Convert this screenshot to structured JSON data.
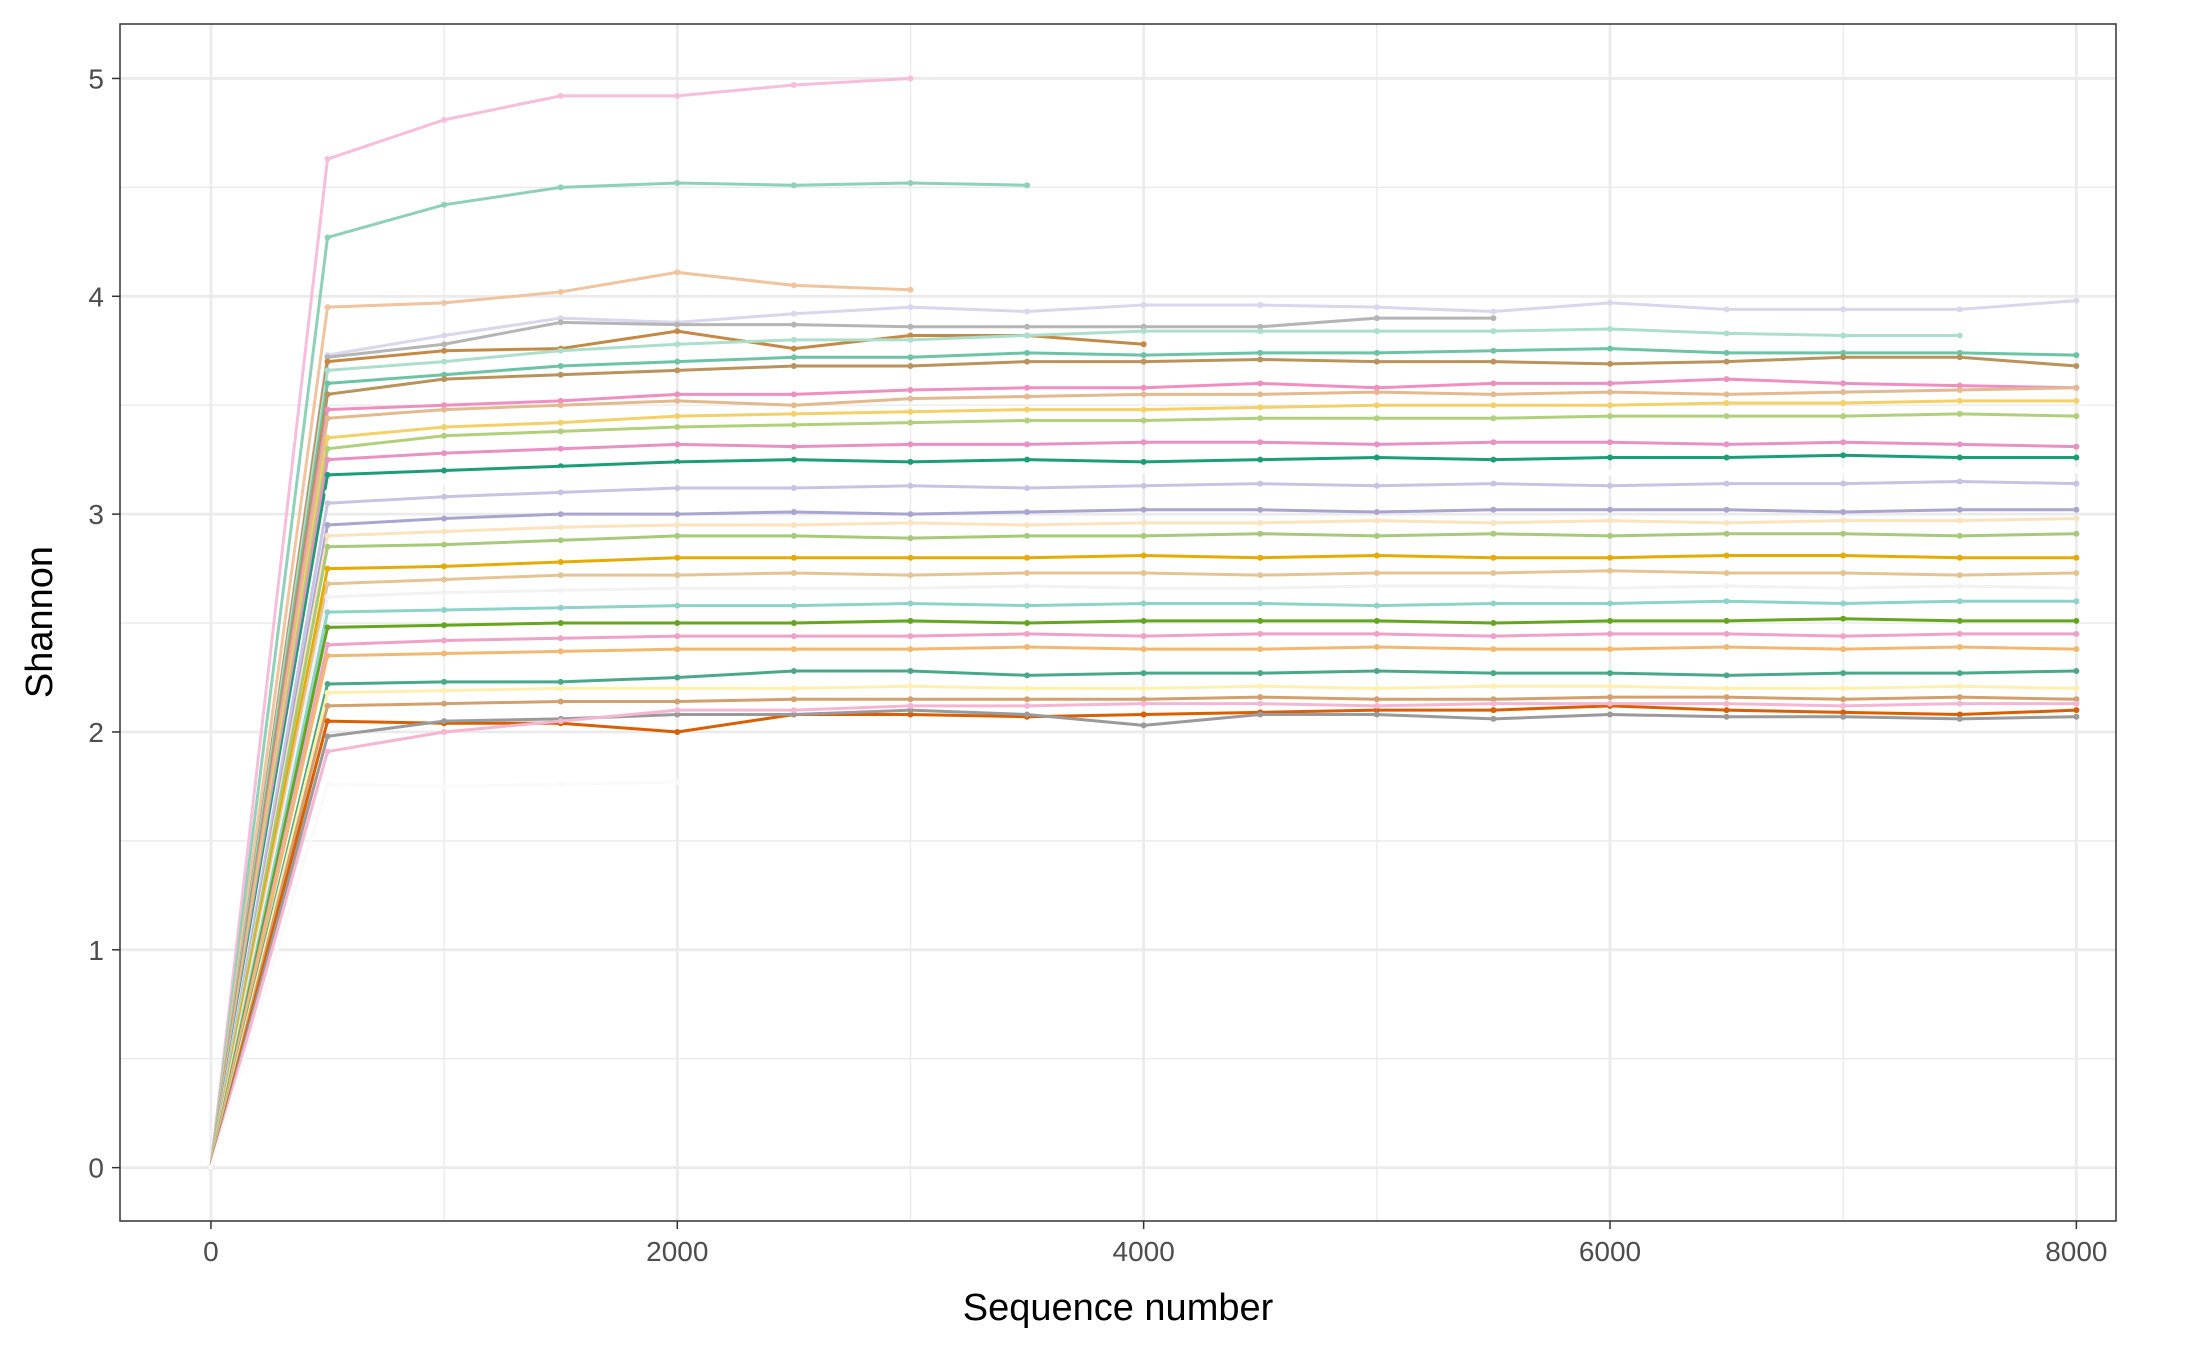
{
  "chart_data": {
    "type": "line",
    "x_label": "Sequence number",
    "y_label": "Shannon",
    "x": [
      0,
      500,
      1000,
      1500,
      2000,
      2500,
      3000,
      3500,
      4000,
      4500,
      5000,
      5500,
      6000,
      6500,
      7000,
      7500,
      8000
    ],
    "xlim": [
      -390,
      8170
    ],
    "xticks": [
      0,
      2000,
      4000,
      6000,
      8000
    ],
    "ylim": [
      -0.245,
      5.25
    ],
    "yticks": [
      0,
      1,
      2,
      3,
      4,
      5
    ],
    "grid": true,
    "series": [
      {
        "color": "#f7bedb",
        "values": [
          0,
          4.63,
          4.81,
          4.92,
          4.92,
          4.97,
          5.0,
          null,
          null,
          null,
          null,
          null,
          null,
          null,
          null,
          null,
          null
        ]
      },
      {
        "color": "#8fd1b8",
        "values": [
          0,
          4.27,
          4.42,
          4.5,
          4.52,
          4.51,
          4.52,
          4.51,
          null,
          null,
          null,
          null,
          null,
          null,
          null,
          null,
          null
        ]
      },
      {
        "color": "#efc49f",
        "values": [
          0,
          3.95,
          3.97,
          4.02,
          4.11,
          4.05,
          4.03,
          null,
          null,
          null,
          null,
          null,
          null,
          null,
          null,
          null,
          null
        ]
      },
      {
        "color": "#dad6ee",
        "values": [
          0,
          3.73,
          3.82,
          3.9,
          3.88,
          3.92,
          3.95,
          3.93,
          3.96,
          3.96,
          3.95,
          3.93,
          3.97,
          3.94,
          3.94,
          3.94,
          3.98
        ]
      },
      {
        "color": "#b5b5b5",
        "values": [
          0,
          3.72,
          3.78,
          3.88,
          3.87,
          3.87,
          3.86,
          3.86,
          3.86,
          3.86,
          3.9,
          3.9,
          null,
          null,
          null,
          null,
          null
        ]
      },
      {
        "color": "#c48a45",
        "values": [
          0,
          3.7,
          3.75,
          3.76,
          3.84,
          3.76,
          3.82,
          3.82,
          3.78,
          null,
          null,
          null,
          null,
          null,
          null,
          null,
          null
        ]
      },
      {
        "color": "#acdfcb",
        "values": [
          0,
          3.66,
          3.7,
          3.75,
          3.78,
          3.8,
          3.8,
          3.82,
          3.84,
          3.84,
          3.84,
          3.84,
          3.85,
          3.83,
          3.82,
          3.82,
          null
        ]
      },
      {
        "color": "#6cc3a6",
        "values": [
          0,
          3.6,
          3.64,
          3.68,
          3.7,
          3.72,
          3.72,
          3.74,
          3.73,
          3.74,
          3.74,
          3.75,
          3.76,
          3.74,
          3.74,
          3.74,
          3.73
        ]
      },
      {
        "color": "#b9935b",
        "values": [
          0,
          3.55,
          3.62,
          3.64,
          3.66,
          3.68,
          3.68,
          3.7,
          3.7,
          3.71,
          3.7,
          3.7,
          3.69,
          3.7,
          3.72,
          3.72,
          3.68
        ]
      },
      {
        "color": "#ef8fc1",
        "values": [
          0,
          3.48,
          3.5,
          3.52,
          3.55,
          3.55,
          3.57,
          3.58,
          3.58,
          3.6,
          3.58,
          3.6,
          3.6,
          3.62,
          3.6,
          3.59,
          3.58
        ]
      },
      {
        "color": "#e3b98f",
        "values": [
          0,
          3.44,
          3.48,
          3.5,
          3.52,
          3.5,
          3.53,
          3.54,
          3.55,
          3.55,
          3.56,
          3.55,
          3.56,
          3.55,
          3.56,
          3.57,
          3.58
        ]
      },
      {
        "color": "#f3d166",
        "values": [
          0,
          3.35,
          3.4,
          3.42,
          3.45,
          3.46,
          3.47,
          3.48,
          3.48,
          3.49,
          3.5,
          3.5,
          3.5,
          3.51,
          3.51,
          3.52,
          3.52
        ]
      },
      {
        "color": "#b1d07c",
        "values": [
          0,
          3.3,
          3.36,
          3.38,
          3.4,
          3.41,
          3.42,
          3.43,
          3.43,
          3.44,
          3.44,
          3.44,
          3.45,
          3.45,
          3.45,
          3.46,
          3.45
        ]
      },
      {
        "color": "#e991c4",
        "values": [
          0,
          3.25,
          3.28,
          3.3,
          3.32,
          3.31,
          3.32,
          3.32,
          3.33,
          3.33,
          3.32,
          3.33,
          3.33,
          3.32,
          3.33,
          3.32,
          3.31
        ]
      },
      {
        "color": "#1b9e77",
        "values": [
          0,
          3.18,
          3.2,
          3.22,
          3.24,
          3.25,
          3.24,
          3.25,
          3.24,
          3.25,
          3.26,
          3.25,
          3.26,
          3.26,
          3.27,
          3.26,
          3.26
        ]
      },
      {
        "color": "#ffffff",
        "values": [
          0,
          3.1,
          3.15,
          3.2,
          3.22,
          3.18,
          3.2,
          3.19,
          3.2,
          3.21,
          3.2,
          3.2,
          3.19,
          3.2,
          3.2,
          3.21,
          3.2
        ]
      },
      {
        "color": "#c7c3e3",
        "values": [
          0,
          3.05,
          3.08,
          3.1,
          3.12,
          3.12,
          3.13,
          3.12,
          3.13,
          3.14,
          3.13,
          3.14,
          3.13,
          3.14,
          3.14,
          3.15,
          3.14
        ]
      },
      {
        "color": "#a8a6cf",
        "values": [
          0,
          2.95,
          2.98,
          3.0,
          3.0,
          3.01,
          3.0,
          3.01,
          3.02,
          3.02,
          3.01,
          3.02,
          3.02,
          3.02,
          3.01,
          3.02,
          3.02
        ]
      },
      {
        "color": "#fbe3bd",
        "values": [
          0,
          2.9,
          2.92,
          2.94,
          2.95,
          2.95,
          2.96,
          2.95,
          2.96,
          2.96,
          2.97,
          2.96,
          2.97,
          2.96,
          2.97,
          2.97,
          2.98
        ]
      },
      {
        "color": "#a6c97a",
        "values": [
          0,
          2.85,
          2.86,
          2.88,
          2.9,
          2.9,
          2.89,
          2.9,
          2.9,
          2.91,
          2.9,
          2.91,
          2.9,
          2.91,
          2.91,
          2.9,
          2.91
        ]
      },
      {
        "color": "#e6ab02",
        "values": [
          0,
          2.75,
          2.76,
          2.78,
          2.8,
          2.8,
          2.8,
          2.8,
          2.81,
          2.8,
          2.81,
          2.8,
          2.8,
          2.81,
          2.81,
          2.8,
          2.8
        ]
      },
      {
        "color": "#e5c494",
        "values": [
          0,
          2.68,
          2.7,
          2.72,
          2.72,
          2.73,
          2.72,
          2.73,
          2.73,
          2.72,
          2.73,
          2.73,
          2.74,
          2.73,
          2.73,
          2.72,
          2.73
        ]
      },
      {
        "color": "#f2f2f2",
        "values": [
          0,
          2.62,
          2.64,
          2.65,
          2.66,
          2.66,
          2.66,
          2.67,
          2.66,
          2.66,
          2.67,
          2.67,
          2.66,
          2.67,
          2.66,
          2.67,
          2.66
        ]
      },
      {
        "color": "#8dd3c7",
        "values": [
          0,
          2.55,
          2.56,
          2.57,
          2.58,
          2.58,
          2.59,
          2.58,
          2.59,
          2.59,
          2.58,
          2.59,
          2.59,
          2.6,
          2.59,
          2.6,
          2.6
        ]
      },
      {
        "color": "#66a61e",
        "values": [
          0,
          2.48,
          2.49,
          2.5,
          2.5,
          2.5,
          2.51,
          2.5,
          2.51,
          2.51,
          2.51,
          2.5,
          2.51,
          2.51,
          2.52,
          2.51,
          2.51
        ]
      },
      {
        "color": "#f0a1c8",
        "values": [
          0,
          2.4,
          2.42,
          2.43,
          2.44,
          2.44,
          2.44,
          2.45,
          2.44,
          2.45,
          2.45,
          2.44,
          2.45,
          2.45,
          2.44,
          2.45,
          2.45
        ]
      },
      {
        "color": "#f2b870",
        "values": [
          0,
          2.35,
          2.36,
          2.37,
          2.38,
          2.38,
          2.38,
          2.39,
          2.38,
          2.38,
          2.39,
          2.38,
          2.38,
          2.39,
          2.38,
          2.39,
          2.38
        ]
      },
      {
        "color": "#4aa88a",
        "values": [
          0,
          2.22,
          2.23,
          2.23,
          2.25,
          2.28,
          2.28,
          2.26,
          2.27,
          2.27,
          2.28,
          2.27,
          2.27,
          2.26,
          2.27,
          2.27,
          2.28
        ]
      },
      {
        "color": "#fff0b0",
        "values": [
          0,
          2.18,
          2.19,
          2.2,
          2.2,
          2.2,
          2.21,
          2.2,
          2.2,
          2.21,
          2.2,
          2.21,
          2.21,
          2.2,
          2.2,
          2.21,
          2.2
        ]
      },
      {
        "color": "#d2a06e",
        "values": [
          0,
          2.12,
          2.13,
          2.14,
          2.14,
          2.15,
          2.15,
          2.15,
          2.15,
          2.16,
          2.15,
          2.15,
          2.16,
          2.16,
          2.15,
          2.16,
          2.15
        ]
      },
      {
        "color": "#d95f02",
        "values": [
          0,
          2.05,
          2.04,
          2.04,
          2.0,
          2.08,
          2.08,
          2.07,
          2.08,
          2.09,
          2.1,
          2.1,
          2.12,
          2.1,
          2.09,
          2.08,
          2.1
        ]
      },
      {
        "color": "#9a9a9a",
        "values": [
          0,
          1.98,
          2.05,
          2.06,
          2.08,
          2.08,
          2.1,
          2.08,
          2.03,
          2.08,
          2.08,
          2.06,
          2.08,
          2.07,
          2.07,
          2.06,
          2.07
        ]
      },
      {
        "color": "#f5b6d3",
        "values": [
          0,
          1.91,
          2.0,
          2.05,
          2.1,
          2.1,
          2.12,
          2.12,
          2.13,
          2.13,
          2.12,
          2.13,
          2.13,
          2.13,
          2.12,
          2.13,
          2.13
        ]
      },
      {
        "color": "#fafafa",
        "values": [
          0,
          1.76,
          1.75,
          1.76,
          1.77,
          null,
          null,
          null,
          null,
          null,
          null,
          null,
          null,
          null,
          null,
          null,
          null
        ]
      }
    ]
  }
}
